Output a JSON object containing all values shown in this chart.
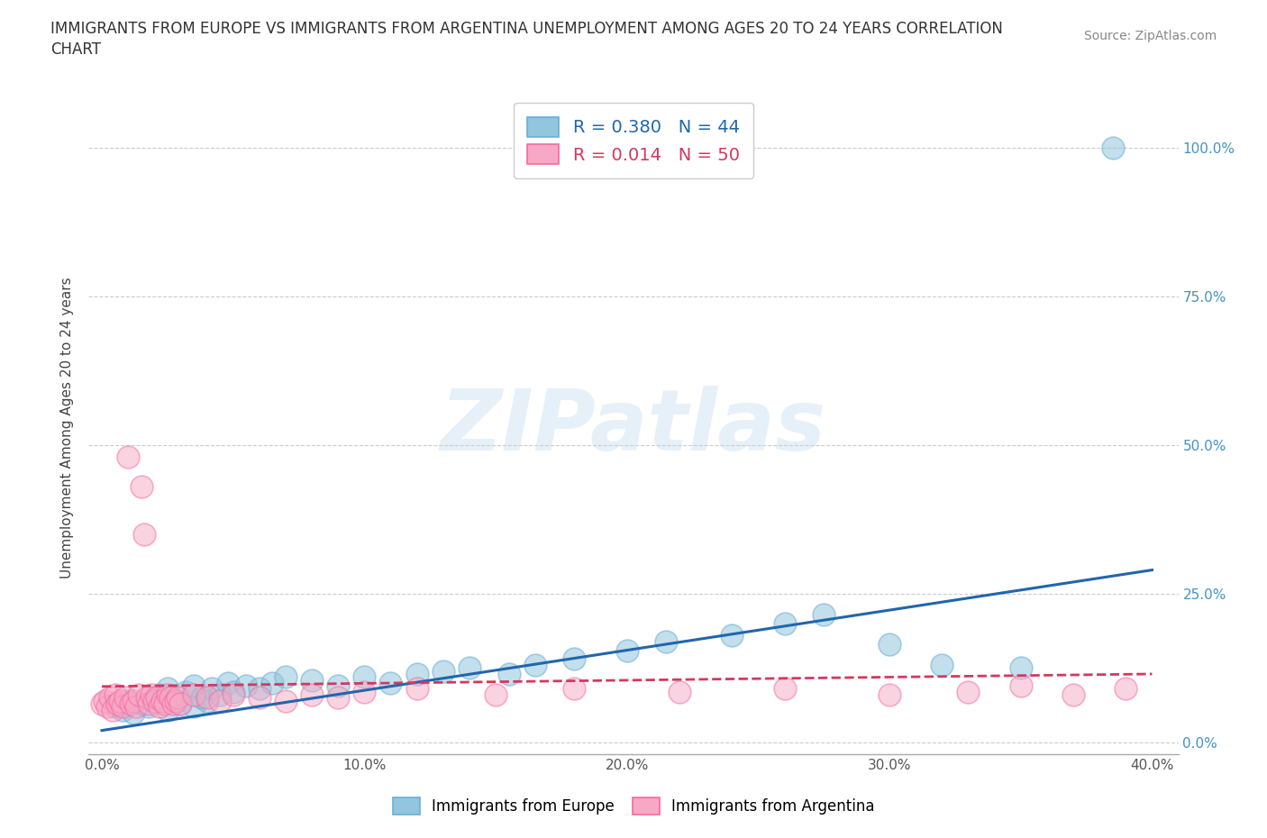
{
  "title": "IMMIGRANTS FROM EUROPE VS IMMIGRANTS FROM ARGENTINA UNEMPLOYMENT AMONG AGES 20 TO 24 YEARS CORRELATION\nCHART",
  "source": "Source: ZipAtlas.com",
  "ylabel_label": "Unemployment Among Ages 20 to 24 years",
  "xlim": [
    -0.005,
    0.41
  ],
  "ylim": [
    -0.02,
    1.08
  ],
  "ytick_vals": [
    0.0,
    0.25,
    0.5,
    0.75,
    1.0
  ],
  "xtick_vals": [
    0.0,
    0.1,
    0.2,
    0.3,
    0.4
  ],
  "europe_color": "#92c5de",
  "europe_edge_color": "#6baed6",
  "argentina_color": "#f7a8c4",
  "argentina_edge_color": "#f768a1",
  "europe_trend_color": "#2166ac",
  "argentina_trend_color": "#d6375e",
  "right_tick_color": "#4393c3",
  "europe_R": "R = 0.380",
  "europe_N": "N = 44",
  "argentina_R": "R = 0.014",
  "argentina_N": "N = 50",
  "europe_scatter_x": [
    0.005,
    0.008,
    0.01,
    0.012,
    0.015,
    0.018,
    0.02,
    0.022,
    0.025,
    0.025,
    0.028,
    0.03,
    0.032,
    0.035,
    0.035,
    0.038,
    0.04,
    0.042,
    0.045,
    0.048,
    0.05,
    0.055,
    0.06,
    0.065,
    0.07,
    0.08,
    0.09,
    0.1,
    0.11,
    0.12,
    0.13,
    0.14,
    0.155,
    0.165,
    0.18,
    0.2,
    0.215,
    0.24,
    0.26,
    0.275,
    0.3,
    0.32,
    0.35,
    0.385
  ],
  "europe_scatter_y": [
    0.06,
    0.055,
    0.07,
    0.05,
    0.065,
    0.06,
    0.075,
    0.08,
    0.055,
    0.09,
    0.07,
    0.065,
    0.085,
    0.06,
    0.095,
    0.075,
    0.07,
    0.09,
    0.08,
    0.1,
    0.085,
    0.095,
    0.09,
    0.1,
    0.11,
    0.105,
    0.095,
    0.11,
    0.1,
    0.115,
    0.12,
    0.125,
    0.115,
    0.13,
    0.14,
    0.155,
    0.17,
    0.18,
    0.2,
    0.215,
    0.165,
    0.13,
    0.125,
    1.0
  ],
  "argentina_scatter_x": [
    0.0,
    0.001,
    0.002,
    0.003,
    0.004,
    0.005,
    0.006,
    0.007,
    0.008,
    0.009,
    0.01,
    0.011,
    0.012,
    0.013,
    0.014,
    0.015,
    0.016,
    0.017,
    0.018,
    0.019,
    0.02,
    0.021,
    0.022,
    0.023,
    0.024,
    0.025,
    0.026,
    0.027,
    0.028,
    0.029,
    0.03,
    0.035,
    0.04,
    0.045,
    0.05,
    0.06,
    0.07,
    0.08,
    0.09,
    0.1,
    0.12,
    0.15,
    0.18,
    0.22,
    0.26,
    0.3,
    0.33,
    0.35,
    0.37,
    0.39
  ],
  "argentina_scatter_y": [
    0.065,
    0.07,
    0.06,
    0.075,
    0.055,
    0.08,
    0.065,
    0.07,
    0.06,
    0.075,
    0.48,
    0.065,
    0.07,
    0.06,
    0.08,
    0.43,
    0.35,
    0.075,
    0.065,
    0.08,
    0.07,
    0.075,
    0.06,
    0.07,
    0.065,
    0.08,
    0.075,
    0.065,
    0.07,
    0.075,
    0.065,
    0.08,
    0.075,
    0.07,
    0.08,
    0.075,
    0.07,
    0.08,
    0.075,
    0.085,
    0.09,
    0.08,
    0.09,
    0.085,
    0.09,
    0.08,
    0.085,
    0.095,
    0.08,
    0.09
  ],
  "europe_trend_x": [
    0.0,
    0.4
  ],
  "europe_trend_y": [
    0.02,
    0.29
  ],
  "argentina_trend_x": [
    0.0,
    0.4
  ],
  "argentina_trend_y": [
    0.094,
    0.115
  ],
  "background_color": "#ffffff",
  "grid_color": "#cccccc",
  "watermark_text": "ZIPatlas",
  "bottom_legend_europe": "Immigrants from Europe",
  "bottom_legend_argentina": "Immigrants from Argentina"
}
